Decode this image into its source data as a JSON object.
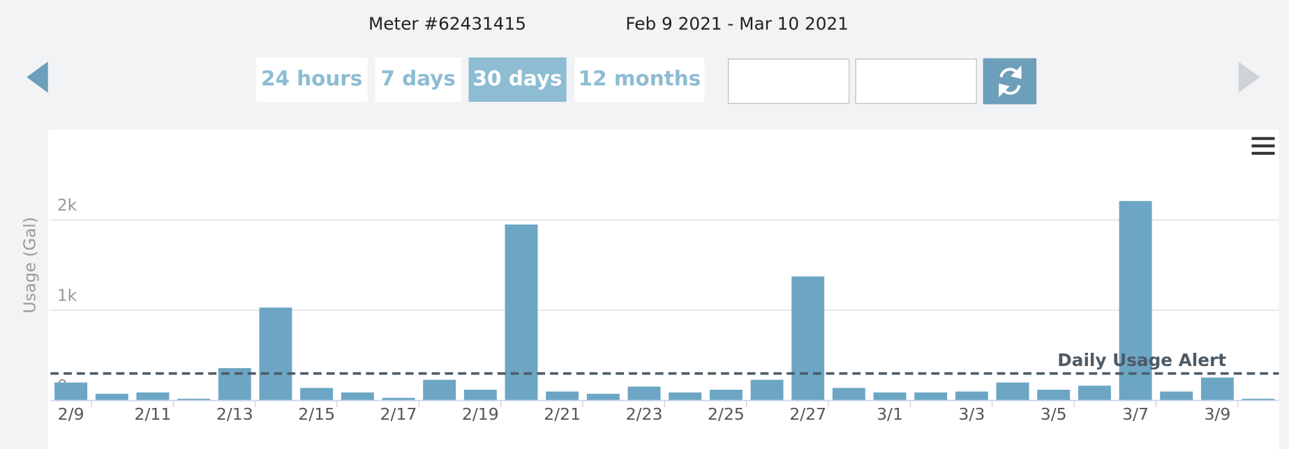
{
  "header": {
    "meter": "Meter #62431415",
    "range": "Feb 9 2021 - Mar 10 2021"
  },
  "range_buttons": [
    "24 hours",
    "7 days",
    "30 days",
    "12 months"
  ],
  "active_button": 2,
  "chart_data": {
    "type": "bar",
    "y_label": "Usage (Gal)",
    "categories": [
      "2/9",
      null,
      "2/11",
      null,
      "2/13",
      null,
      "2/15",
      null,
      "2/17",
      null,
      "2/19",
      null,
      "2/21",
      null,
      "2/23",
      null,
      "2/25",
      null,
      "2/27",
      null,
      "3/1",
      null,
      "3/3",
      null,
      "3/5",
      null,
      "3/7",
      null,
      "3/9",
      null
    ],
    "values": [
      200,
      75,
      90,
      20,
      360,
      1030,
      140,
      90,
      30,
      230,
      120,
      1950,
      100,
      75,
      155,
      90,
      120,
      230,
      1375,
      140,
      90,
      90,
      100,
      200,
      120,
      165,
      2210,
      100,
      255,
      20
    ],
    "color": "#6ca6c4",
    "ylim": [
      0,
      3000
    ],
    "yticks": [
      0,
      {
        "value": 1000,
        "label": "1k"
      },
      {
        "value": 2000,
        "label": "2k"
      }
    ],
    "grid": true,
    "alert": {
      "label": "Daily Usage Alert",
      "value": 300
    }
  }
}
